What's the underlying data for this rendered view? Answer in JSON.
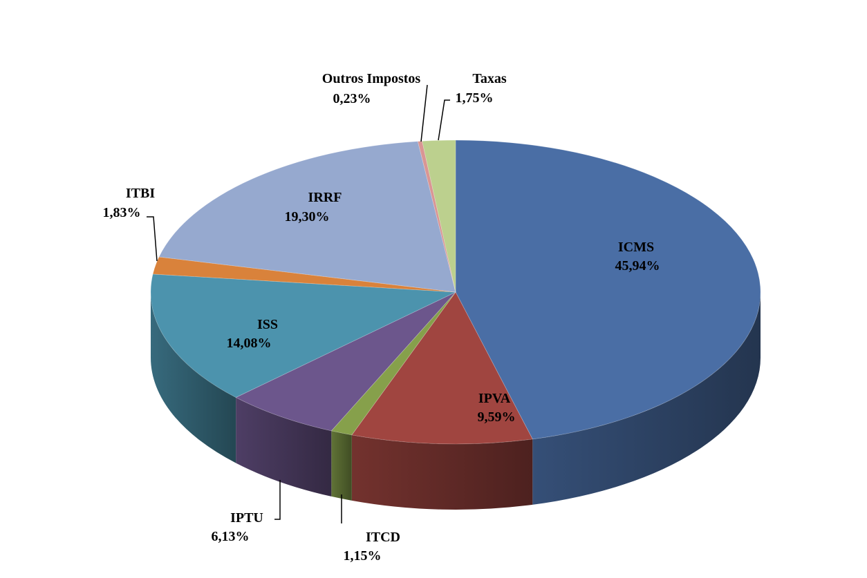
{
  "chart_data": {
    "type": "pie",
    "style": "3d",
    "title": "",
    "slices": [
      {
        "label": "ICMS",
        "value": 45.94,
        "display": "45,94%",
        "color": "#4a6ea5"
      },
      {
        "label": "IPVA",
        "value": 9.59,
        "display": "9,59%",
        "color": "#a04540"
      },
      {
        "label": "ITCD",
        "value": 1.15,
        "display": "1,15%",
        "color": "#86a04b"
      },
      {
        "label": "IPTU",
        "value": 6.13,
        "display": "6,13%",
        "color": "#6c568c"
      },
      {
        "label": "ISS",
        "value": 14.08,
        "display": "14,08%",
        "color": "#4c93ad"
      },
      {
        "label": "ITBI",
        "value": 1.83,
        "display": "1,83%",
        "color": "#d9823b"
      },
      {
        "label": "IRRF",
        "value": 19.3,
        "display": "19,30%",
        "color": "#96a9cf"
      },
      {
        "label": "Outros Impostos",
        "value": 0.23,
        "display": "0,23%",
        "color": "#d99694"
      },
      {
        "label": "Taxas",
        "value": 1.75,
        "display": "1,75%",
        "color": "#bcd08e"
      }
    ]
  }
}
